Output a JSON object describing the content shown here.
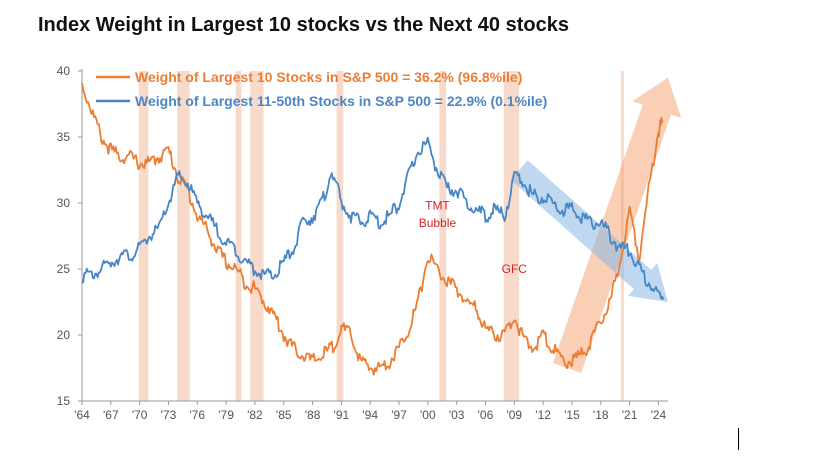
{
  "title": "Index Weight in Largest 10 stocks vs the Next 40 stocks",
  "chart_data": {
    "type": "line",
    "title": "Index Weight in Largest 10 stocks vs the Next 40 stocks",
    "xlabel": "",
    "ylabel": "",
    "xlim": [
      1964,
      2025
    ],
    "ylim": [
      15,
      40
    ],
    "y_ticks": [
      15,
      20,
      25,
      30,
      35,
      40
    ],
    "x_ticks": [
      {
        "year": 1964,
        "label": "'64"
      },
      {
        "year": 1967,
        "label": "'67"
      },
      {
        "year": 1970,
        "label": "'70"
      },
      {
        "year": 1973,
        "label": "'73"
      },
      {
        "year": 1976,
        "label": "'76"
      },
      {
        "year": 1979,
        "label": "'79"
      },
      {
        "year": 1982,
        "label": "'82"
      },
      {
        "year": 1985,
        "label": "'85"
      },
      {
        "year": 1988,
        "label": "'88"
      },
      {
        "year": 1991,
        "label": "'91"
      },
      {
        "year": 1994,
        "label": "'94"
      },
      {
        "year": 1997,
        "label": "'97"
      },
      {
        "year": 2000,
        "label": "'00"
      },
      {
        "year": 2003,
        "label": "'03"
      },
      {
        "year": 2006,
        "label": "'06"
      },
      {
        "year": 2009,
        "label": "'09"
      },
      {
        "year": 2012,
        "label": "'12"
      },
      {
        "year": 2015,
        "label": "'15"
      },
      {
        "year": 2018,
        "label": "'18"
      },
      {
        "year": 2021,
        "label": "'21"
      },
      {
        "year": 2024,
        "label": "'24"
      }
    ],
    "grid": false,
    "legend_position": "top-left",
    "series": [
      {
        "name": "Weight of Largest 10 Stocks in S&P 500 = 36.2% (96.8%ile)",
        "color": "#ed7d31",
        "x": [
          1964,
          1965,
          1966,
          1967,
          1968,
          1969,
          1970,
          1971,
          1972,
          1973,
          1974,
          1975,
          1976,
          1977,
          1978,
          1979,
          1980,
          1981,
          1982,
          1983,
          1984,
          1985,
          1986,
          1987,
          1988,
          1989,
          1990,
          1991,
          1992,
          1993,
          1994,
          1995,
          1996,
          1997,
          1998,
          1999,
          2000,
          2001,
          2002,
          2003,
          2004,
          2005,
          2006,
          2007,
          2008,
          2009,
          2010,
          2011,
          2012,
          2013,
          2014,
          2015,
          2016,
          2017,
          2018,
          2019,
          2020,
          2021,
          2022,
          2023,
          2024,
          2024.5
        ],
        "y": [
          39,
          37,
          35,
          34,
          33.5,
          33.5,
          33,
          33,
          33.5,
          34,
          32,
          31,
          29,
          28,
          26.5,
          25.5,
          25,
          24,
          23.5,
          22.5,
          21.5,
          20,
          19,
          18.5,
          18,
          18.5,
          19,
          20.5,
          20,
          18,
          17.5,
          17.5,
          18,
          19,
          20.5,
          22.5,
          26,
          25,
          24,
          23.5,
          22.5,
          22,
          20.5,
          20,
          20,
          21.5,
          19.5,
          19,
          20,
          19,
          18,
          18,
          18.5,
          19.5,
          21,
          22.5,
          25.5,
          29.5,
          26,
          31,
          35.5,
          36.2
        ]
      },
      {
        "name": "Weight of Largest 11-50th Stocks in S&P 500 = 22.9% (0.1%ile)",
        "color": "#4a86c5",
        "x": [
          1964,
          1965,
          1966,
          1967,
          1968,
          1969,
          1970,
          1971,
          1972,
          1973,
          1974,
          1975,
          1976,
          1977,
          1978,
          1979,
          1980,
          1981,
          1982,
          1983,
          1984,
          1985,
          1986,
          1987,
          1988,
          1989,
          1990,
          1991,
          1992,
          1993,
          1994,
          1995,
          1996,
          1997,
          1998,
          1999,
          2000,
          2001,
          2002,
          2003,
          2004,
          2005,
          2006,
          2007,
          2008,
          2009,
          2010,
          2011,
          2012,
          2013,
          2014,
          2015,
          2016,
          2017,
          2018,
          2019,
          2020,
          2021,
          2022,
          2023,
          2024,
          2024.5
        ],
        "y": [
          24.5,
          24.5,
          25,
          25.5,
          26,
          26,
          26.5,
          27.5,
          28,
          30,
          32,
          31.5,
          30,
          29,
          28,
          27,
          26.5,
          25.5,
          25,
          24.5,
          24.5,
          25.5,
          26.5,
          28.5,
          29,
          30,
          32.5,
          30,
          29,
          28.5,
          29,
          28.5,
          29,
          30,
          32,
          34,
          34.5,
          32.5,
          31,
          31,
          30,
          29.5,
          29,
          29.5,
          29,
          32,
          31.5,
          30.5,
          30.5,
          30,
          29.5,
          29.5,
          29,
          28.5,
          28.5,
          27.5,
          26.5,
          26.5,
          25,
          24,
          23,
          22.9
        ]
      }
    ],
    "annotations": [
      {
        "text": "TMT",
        "x": 2001,
        "y": 29.5
      },
      {
        "text": "Bubble",
        "x": 2001,
        "y": 28.2
      },
      {
        "text": "GFC",
        "x": 2009,
        "y": 24.7
      }
    ],
    "shaded_periods": [
      [
        1969.9,
        1970.9
      ],
      [
        1973.9,
        1975.2
      ],
      [
        1980.0,
        1980.6
      ],
      [
        1981.5,
        1982.9
      ],
      [
        1990.5,
        1991.2
      ],
      [
        2001.2,
        2001.9
      ],
      [
        2007.9,
        2009.5
      ],
      [
        2020.1,
        2020.4
      ]
    ],
    "trend_arrows": [
      {
        "series": "orange",
        "from": {
          "year": 2014.5,
          "value": 17.5
        },
        "to": {
          "year": 2025,
          "value": 39.5
        }
      },
      {
        "series": "blue",
        "from": {
          "year": 2009.5,
          "value": 32.5
        },
        "to": {
          "year": 2025,
          "value": 22.5
        }
      }
    ]
  }
}
